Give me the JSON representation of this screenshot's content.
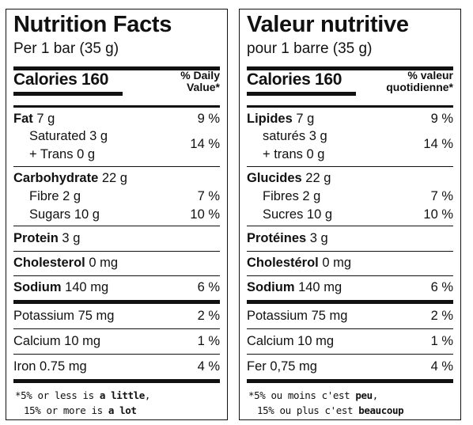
{
  "english": {
    "title": "Nutrition Facts",
    "serving": "Per 1 bar (35 g)",
    "calories_label": "Calories",
    "calories_value": "160",
    "dv_line1": "% Daily",
    "dv_line2": "Value*",
    "fat_name": "Fat",
    "fat_amount": " 7 g",
    "fat_pct": "9 %",
    "saturated": "Saturated 3 g",
    "trans": "+ Trans 0 g",
    "satfat_pct": "14 %",
    "carb_name": "Carbohydrate",
    "carb_amount": " 22 g",
    "fibre": "Fibre 2 g",
    "fibre_pct": "7 %",
    "sugars": "Sugars 10 g",
    "sugars_pct": "10 %",
    "protein_name": "Protein",
    "protein_amount": " 3 g",
    "chol_name": "Cholesterol",
    "chol_amount": " 0 mg",
    "sodium_name": "Sodium",
    "sodium_amount": " 140 mg",
    "sodium_pct": "6 %",
    "potassium": "Potassium 75 mg",
    "potassium_pct": "2 %",
    "calcium": "Calcium 10 mg",
    "calcium_pct": "1 %",
    "iron": "Iron 0.75 mg",
    "iron_pct": "4 %",
    "foot1_pre": "*5% or less is ",
    "foot1_bold": "a little",
    "foot1_post": ",",
    "foot2_pre": "15% or more is ",
    "foot2_bold": "a lot"
  },
  "french": {
    "title": "Valeur nutritive",
    "serving": "pour 1 barre (35 g)",
    "calories_label": "Calories",
    "calories_value": "160",
    "dv_line1": "% valeur",
    "dv_line2": "quotidienne*",
    "fat_name": "Lipides",
    "fat_amount": " 7 g",
    "fat_pct": "9 %",
    "saturated": "saturés 3 g",
    "trans": "+ trans 0 g",
    "satfat_pct": "14 %",
    "carb_name": "Glucides",
    "carb_amount": " 22 g",
    "fibre": "Fibres 2 g",
    "fibre_pct": "7 %",
    "sugars": "Sucres 10 g",
    "sugars_pct": "10 %",
    "protein_name": "Protéines",
    "protein_amount": " 3 g",
    "chol_name": "Cholestérol",
    "chol_amount": " 0 mg",
    "sodium_name": "Sodium",
    "sodium_amount": " 140 mg",
    "sodium_pct": "6 %",
    "potassium": "Potassium 75 mg",
    "potassium_pct": "2 %",
    "calcium": "Calcium 10 mg",
    "calcium_pct": "1 %",
    "iron": "Fer 0,75 mg",
    "iron_pct": "4 %",
    "foot1_pre": "*5% ou moins c'est ",
    "foot1_bold": "peu",
    "foot1_post": ",",
    "foot2_pre": "15% ou plus c'est ",
    "foot2_bold": "beaucoup"
  }
}
